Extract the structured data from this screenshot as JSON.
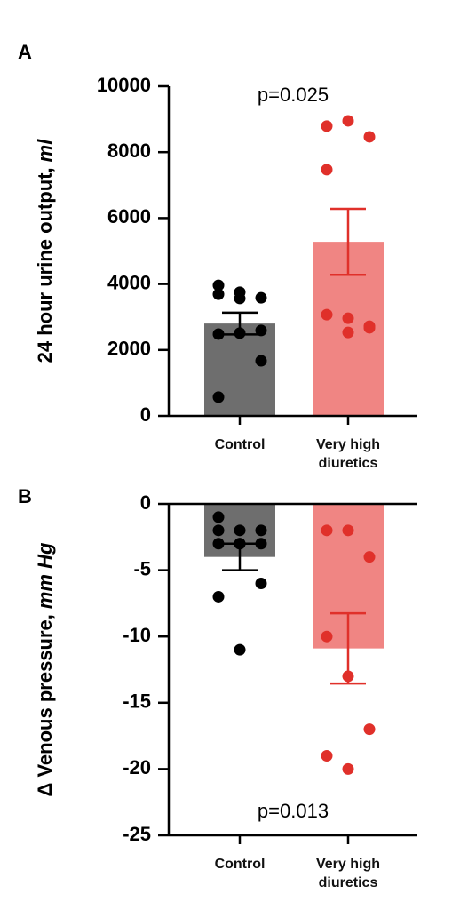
{
  "chart_data": [
    {
      "type": "bar",
      "panel_label": "A",
      "ylabel": "24 hour urine output,",
      "ylabel_unit": "ml",
      "annotation": "p=0.025",
      "categories": [
        "Control",
        "Very high diuretics"
      ],
      "values": [
        2800,
        5280
      ],
      "errors": [
        330,
        1000
      ],
      "colors": [
        "#6e6e6e",
        "#f08583"
      ],
      "point_colors": [
        "#000000",
        "#e0302a"
      ],
      "error_colors": [
        "#000000",
        "#e0302a"
      ],
      "points": [
        [
          3960,
          3750,
          3580,
          3690,
          3560,
          2590,
          2480,
          2510,
          1670,
          570
        ],
        [
          8790,
          8950,
          8465,
          7470,
          2960,
          2720,
          3070,
          2530,
          2670
        ]
      ],
      "ylim": [
        0,
        10000
      ],
      "yticks": [
        0,
        2000,
        4000,
        6000,
        8000,
        10000
      ],
      "zero_line": false
    },
    {
      "type": "bar",
      "panel_label": "B",
      "ylabel": "Δ Venous pressure,",
      "ylabel_unit": "mm Hg",
      "annotation": "p=0.013",
      "categories": [
        "Control",
        "Very high diuretics"
      ],
      "values": [
        -4.0,
        -10.9
      ],
      "errors": [
        1.0,
        2.65
      ],
      "colors": [
        "#6e6e6e",
        "#f08583"
      ],
      "point_colors": [
        "#000000",
        "#e0302a"
      ],
      "error_colors": [
        "#000000",
        "#e0302a"
      ],
      "points": [
        [
          -1,
          -2,
          -2,
          -2,
          -3,
          -3,
          -3,
          -3,
          -6,
          -7,
          -11
        ],
        [
          -2,
          -2,
          -4,
          -10,
          -13,
          -17,
          -19,
          -20
        ]
      ],
      "ylim": [
        -25,
        0
      ],
      "yticks": [
        -25,
        -20,
        -15,
        -10,
        -5,
        0
      ],
      "zero_line": true
    }
  ]
}
